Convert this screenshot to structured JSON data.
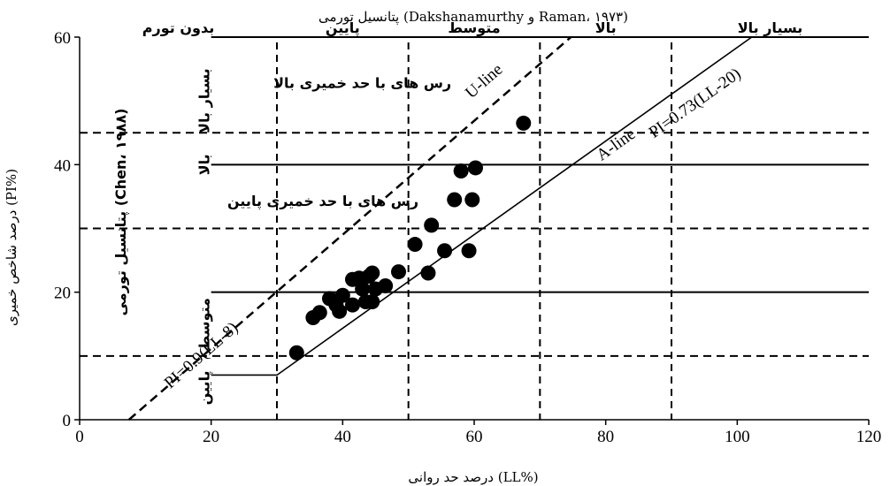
{
  "chart_data": {
    "type": "scatter",
    "title": "پتانسیل تورمی (Dakshanamurthy و Raman، ۱۹۷۳)",
    "xlabel": "درصد حد روانی (LL%)",
    "ylabel": "درصد شاخص خمیری (PI%)",
    "xlim": [
      0,
      120
    ],
    "ylim": [
      0,
      60
    ],
    "x_ticks": [
      "0",
      "20",
      "40",
      "60",
      "80",
      "100",
      "120"
    ],
    "y_ticks": [
      "0",
      "20",
      "40",
      "60"
    ],
    "grid": false,
    "legend": "none",
    "marker_color": "#000000",
    "points": [
      {
        "x": 33,
        "y": 10.5
      },
      {
        "x": 35.5,
        "y": 16
      },
      {
        "x": 36.5,
        "y": 16.8
      },
      {
        "x": 38,
        "y": 19
      },
      {
        "x": 39,
        "y": 18
      },
      {
        "x": 39.5,
        "y": 17
      },
      {
        "x": 40,
        "y": 19.5
      },
      {
        "x": 41.5,
        "y": 22
      },
      {
        "x": 41.5,
        "y": 18
      },
      {
        "x": 42.5,
        "y": 22.2
      },
      {
        "x": 43,
        "y": 20.5
      },
      {
        "x": 43.5,
        "y": 18.5
      },
      {
        "x": 44,
        "y": 22.5
      },
      {
        "x": 44.5,
        "y": 23
      },
      {
        "x": 44.5,
        "y": 18.5
      },
      {
        "x": 45,
        "y": 20.5
      },
      {
        "x": 46.5,
        "y": 21
      },
      {
        "x": 48.5,
        "y": 23.2
      },
      {
        "x": 51,
        "y": 27.5
      },
      {
        "x": 53,
        "y": 23
      },
      {
        "x": 53.5,
        "y": 30.5
      },
      {
        "x": 55.5,
        "y": 26.5
      },
      {
        "x": 57,
        "y": 34.5
      },
      {
        "x": 58,
        "y": 39
      },
      {
        "x": 59.2,
        "y": 26.5
      },
      {
        "x": 59.7,
        "y": 34.5
      },
      {
        "x": 60.2,
        "y": 39.5
      },
      {
        "x": 67.5,
        "y": 46.5
      }
    ],
    "lines": [
      {
        "name": "A-line",
        "label": "A-line",
        "equation": "PI=0.73(LL-20)",
        "style": "solid",
        "points": [
          [
            20,
            7
          ],
          [
            30,
            7
          ],
          [
            102.2,
            60
          ]
        ]
      },
      {
        "name": "U-line",
        "label": "U-line",
        "equation": "PI=0.9(LL-8)",
        "style": "dashed",
        "points": [
          [
            7.5,
            0
          ],
          [
            74.7,
            60
          ]
        ]
      }
    ],
    "swell_potential_dakshanamurthy": {
      "boundaries_ll": [
        30,
        50,
        70,
        90
      ],
      "zones": [
        {
          "label": "بدون تورم",
          "ll_mid": 15
        },
        {
          "label": "پایین",
          "ll_mid": 40
        },
        {
          "label": "متوسط",
          "ll_mid": 60
        },
        {
          "label": "بالا",
          "ll_mid": 80
        },
        {
          "label": "بسیار بالا",
          "ll_mid": 105
        }
      ]
    },
    "swell_potential_chen": {
      "title": "پتانسیل تورمی (Chen، ۱۹۸۸)",
      "solid_boundaries_pi": [
        20,
        40,
        60
      ],
      "dashed_boundaries_pi": [
        10,
        30,
        45
      ],
      "zones": [
        {
          "label": "پایین",
          "pi_mid": 5
        },
        {
          "label": "متوسط",
          "pi_mid": 15
        },
        {
          "label": "بالا",
          "pi_mid": 40
        },
        {
          "label": "بسیار بالا",
          "pi_mid": 50
        }
      ]
    },
    "annotations": [
      {
        "text": "رس های با حد خمیری بالا",
        "x": 43,
        "y": 52
      },
      {
        "text": "رس های با حد خمیری پایین",
        "x": 37,
        "y": 33.5
      }
    ]
  }
}
